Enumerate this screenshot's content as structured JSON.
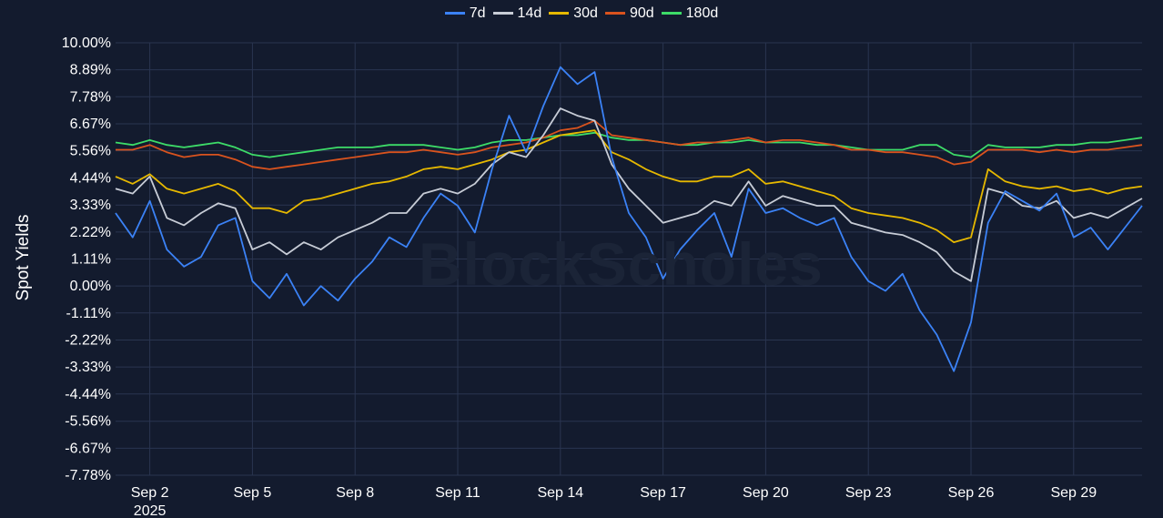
{
  "chart_data": {
    "type": "line",
    "title": "",
    "xlabel": "",
    "ylabel": "Spot Yields",
    "watermark": "BlockScholes",
    "ylim": [
      -7.78,
      10.0
    ],
    "x_range": [
      "2025-09-01",
      "2025-10-01"
    ],
    "yticks": [
      "10.00%",
      "8.89%",
      "7.78%",
      "6.67%",
      "5.56%",
      "4.44%",
      "3.33%",
      "2.22%",
      "1.11%",
      "0.00%",
      "-1.11%",
      "-2.22%",
      "-3.33%",
      "-4.44%",
      "-5.56%",
      "-6.67%",
      "-7.78%"
    ],
    "ytick_values": [
      10.0,
      8.89,
      7.78,
      6.67,
      5.56,
      4.44,
      3.33,
      2.22,
      1.11,
      0.0,
      -1.11,
      -2.22,
      -3.33,
      -4.44,
      -5.56,
      -6.67,
      -7.78
    ],
    "xticks": [
      {
        "label": "Sep 2",
        "sub": "2025",
        "date": "2025-09-02"
      },
      {
        "label": "Sep 5",
        "date": "2025-09-05"
      },
      {
        "label": "Sep 8",
        "date": "2025-09-08"
      },
      {
        "label": "Sep 11",
        "date": "2025-09-11"
      },
      {
        "label": "Sep 14",
        "date": "2025-09-14"
      },
      {
        "label": "Sep 17",
        "date": "2025-09-17"
      },
      {
        "label": "Sep 20",
        "date": "2025-09-20"
      },
      {
        "label": "Sep 23",
        "date": "2025-09-23"
      },
      {
        "label": "Sep 26",
        "date": "2025-09-26"
      },
      {
        "label": "Sep 29",
        "date": "2025-09-29"
      }
    ],
    "x": [
      "2025-09-01",
      "2025-09-01T12:00",
      "2025-09-02",
      "2025-09-02T12:00",
      "2025-09-03",
      "2025-09-03T12:00",
      "2025-09-04",
      "2025-09-04T12:00",
      "2025-09-05",
      "2025-09-05T12:00",
      "2025-09-06",
      "2025-09-06T12:00",
      "2025-09-07",
      "2025-09-07T12:00",
      "2025-09-08",
      "2025-09-08T12:00",
      "2025-09-09",
      "2025-09-09T12:00",
      "2025-09-10",
      "2025-09-10T12:00",
      "2025-09-11",
      "2025-09-11T12:00",
      "2025-09-12",
      "2025-09-12T12:00",
      "2025-09-13",
      "2025-09-13T12:00",
      "2025-09-14",
      "2025-09-14T12:00",
      "2025-09-15",
      "2025-09-15T12:00",
      "2025-09-16",
      "2025-09-16T12:00",
      "2025-09-17",
      "2025-09-17T12:00",
      "2025-09-18",
      "2025-09-18T12:00",
      "2025-09-19",
      "2025-09-19T12:00",
      "2025-09-20",
      "2025-09-20T12:00",
      "2025-09-21",
      "2025-09-21T12:00",
      "2025-09-22",
      "2025-09-22T12:00",
      "2025-09-23",
      "2025-09-23T12:00",
      "2025-09-24",
      "2025-09-24T12:00",
      "2025-09-25",
      "2025-09-25T12:00",
      "2025-09-26",
      "2025-09-26T12:00",
      "2025-09-27",
      "2025-09-27T12:00",
      "2025-09-28",
      "2025-09-28T12:00",
      "2025-09-29",
      "2025-09-29T12:00",
      "2025-09-30",
      "2025-09-30T12:00",
      "2025-10-01"
    ],
    "series": [
      {
        "name": "7d",
        "color": "#3b82f6",
        "values": [
          3.0,
          2.0,
          3.5,
          1.5,
          0.8,
          1.2,
          2.5,
          2.8,
          0.2,
          -0.5,
          0.5,
          -0.8,
          0.0,
          -0.6,
          0.3,
          1.0,
          2.0,
          1.6,
          2.8,
          3.8,
          3.3,
          2.2,
          4.8,
          7.0,
          5.5,
          7.4,
          9.0,
          8.3,
          8.8,
          5.3,
          3.0,
          2.0,
          0.3,
          1.5,
          2.3,
          3.0,
          1.2,
          4.0,
          3.0,
          3.2,
          2.8,
          2.5,
          2.8,
          1.2,
          0.2,
          -0.2,
          0.5,
          -1.0,
          -2.0,
          -3.5,
          -1.5,
          2.6,
          3.9,
          3.5,
          3.1,
          3.8,
          2.0,
          2.4,
          1.5,
          2.4,
          3.3
        ]
      },
      {
        "name": "14d",
        "color": "#c7ccd6",
        "values": [
          4.0,
          3.8,
          4.5,
          2.8,
          2.5,
          3.0,
          3.4,
          3.2,
          1.5,
          1.8,
          1.3,
          1.8,
          1.5,
          2.0,
          2.3,
          2.6,
          3.0,
          3.0,
          3.8,
          4.0,
          3.8,
          4.2,
          5.0,
          5.5,
          5.3,
          6.2,
          7.3,
          7.0,
          6.8,
          5.0,
          4.0,
          3.3,
          2.6,
          2.8,
          3.0,
          3.5,
          3.3,
          4.3,
          3.3,
          3.7,
          3.5,
          3.3,
          3.3,
          2.6,
          2.4,
          2.2,
          2.1,
          1.8,
          1.4,
          0.6,
          0.2,
          4.0,
          3.8,
          3.3,
          3.2,
          3.5,
          2.8,
          3.0,
          2.8,
          3.2,
          3.6
        ]
      },
      {
        "name": "30d",
        "color": "#e6b800",
        "values": [
          4.5,
          4.2,
          4.6,
          4.0,
          3.8,
          4.0,
          4.2,
          3.9,
          3.2,
          3.2,
          3.0,
          3.5,
          3.6,
          3.8,
          4.0,
          4.2,
          4.3,
          4.5,
          4.8,
          4.9,
          4.8,
          5.0,
          5.2,
          5.5,
          5.6,
          5.9,
          6.2,
          6.3,
          6.4,
          5.5,
          5.2,
          4.8,
          4.5,
          4.3,
          4.3,
          4.5,
          4.5,
          4.8,
          4.2,
          4.3,
          4.1,
          3.9,
          3.7,
          3.2,
          3.0,
          2.9,
          2.8,
          2.6,
          2.3,
          1.8,
          2.0,
          4.8,
          4.3,
          4.1,
          4.0,
          4.1,
          3.9,
          4.0,
          3.8,
          4.0,
          4.1
        ]
      },
      {
        "name": "90d",
        "color": "#d9531e",
        "values": [
          5.6,
          5.6,
          5.8,
          5.5,
          5.3,
          5.4,
          5.4,
          5.2,
          4.9,
          4.8,
          4.9,
          5.0,
          5.1,
          5.2,
          5.3,
          5.4,
          5.5,
          5.5,
          5.6,
          5.5,
          5.4,
          5.5,
          5.7,
          5.8,
          5.9,
          6.1,
          6.4,
          6.5,
          6.8,
          6.2,
          6.1,
          6.0,
          5.9,
          5.8,
          5.9,
          5.9,
          6.0,
          6.1,
          5.9,
          6.0,
          6.0,
          5.9,
          5.8,
          5.6,
          5.6,
          5.5,
          5.5,
          5.4,
          5.3,
          5.0,
          5.1,
          5.6,
          5.6,
          5.6,
          5.5,
          5.6,
          5.5,
          5.6,
          5.6,
          5.7,
          5.8
        ]
      },
      {
        "name": "180d",
        "color": "#3ddc68",
        "values": [
          5.9,
          5.8,
          6.0,
          5.8,
          5.7,
          5.8,
          5.9,
          5.7,
          5.4,
          5.3,
          5.4,
          5.5,
          5.6,
          5.7,
          5.7,
          5.7,
          5.8,
          5.8,
          5.8,
          5.7,
          5.6,
          5.7,
          5.9,
          6.0,
          6.0,
          6.1,
          6.2,
          6.2,
          6.3,
          6.1,
          6.0,
          6.0,
          5.9,
          5.8,
          5.8,
          5.9,
          5.9,
          6.0,
          5.9,
          5.9,
          5.9,
          5.8,
          5.8,
          5.7,
          5.6,
          5.6,
          5.6,
          5.8,
          5.8,
          5.4,
          5.3,
          5.8,
          5.7,
          5.7,
          5.7,
          5.8,
          5.8,
          5.9,
          5.9,
          6.0,
          6.1
        ]
      }
    ],
    "legend_position": "top-center",
    "grid": true,
    "colors": {
      "background": "#131b2e",
      "grid": "#2a3550",
      "text": "#ffffff"
    }
  }
}
